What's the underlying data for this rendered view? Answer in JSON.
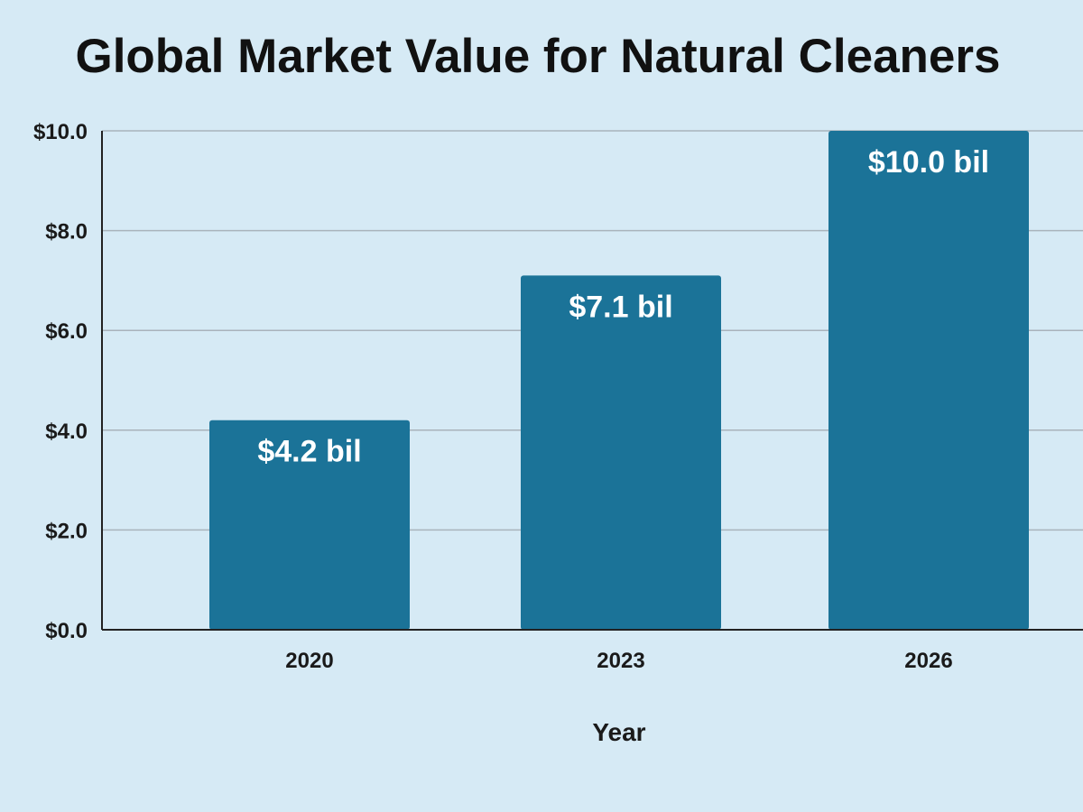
{
  "chart_data": {
    "type": "bar",
    "title": "Global Market Value for Natural Cleaners",
    "xlabel": "Year",
    "ylabel": "",
    "categories": [
      "2020",
      "2023",
      "2026"
    ],
    "values": [
      4.2,
      7.1,
      10.0
    ],
    "data_labels": [
      "$4.2 bil",
      "$7.1 bil",
      "$10.0 bil"
    ],
    "ylim": [
      0,
      10
    ],
    "y_ticks": [
      0,
      2,
      4,
      6,
      8,
      10
    ],
    "y_tick_labels": [
      "$0.0",
      "$2.0",
      "$4.0",
      "$6.0",
      "$8.0",
      "$10.0"
    ],
    "grid": true,
    "legend": "none",
    "colors": {
      "bar": "#1b7398",
      "background": "#d6eaf5",
      "gridline": "#a9b3bb",
      "axis": "#222222"
    }
  }
}
